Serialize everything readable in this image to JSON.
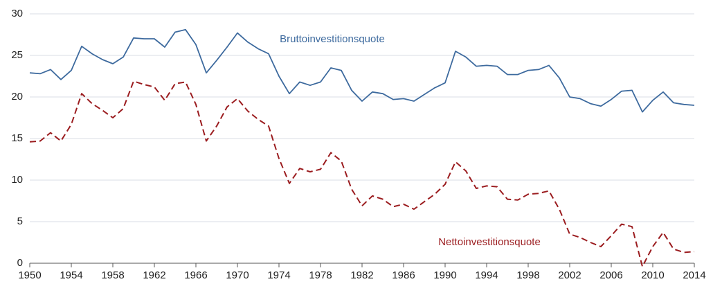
{
  "chart_data": {
    "type": "line",
    "x": [
      1950,
      1951,
      1952,
      1953,
      1954,
      1955,
      1956,
      1957,
      1958,
      1959,
      1960,
      1961,
      1962,
      1963,
      1964,
      1965,
      1966,
      1967,
      1968,
      1969,
      1970,
      1971,
      1972,
      1973,
      1974,
      1975,
      1976,
      1977,
      1978,
      1979,
      1980,
      1981,
      1982,
      1983,
      1984,
      1985,
      1986,
      1987,
      1988,
      1989,
      1990,
      1991,
      1992,
      1993,
      1994,
      1995,
      1996,
      1997,
      1998,
      1999,
      2000,
      2001,
      2002,
      2003,
      2004,
      2005,
      2006,
      2007,
      2008,
      2009,
      2010,
      2011,
      2012,
      2013,
      2014
    ],
    "series": [
      {
        "name": "Bruttoinvestitionsquote",
        "color": "#3d6a9e",
        "style": "solid",
        "values": [
          22.9,
          22.8,
          23.3,
          22.1,
          23.2,
          26.1,
          25.2,
          24.5,
          24.0,
          24.8,
          27.1,
          27.0,
          27.0,
          26.0,
          27.8,
          28.1,
          26.3,
          22.9,
          24.4,
          26.0,
          27.7,
          26.6,
          25.8,
          25.2,
          22.5,
          20.4,
          21.8,
          21.4,
          21.8,
          23.5,
          23.2,
          20.8,
          19.5,
          20.6,
          20.4,
          19.7,
          19.8,
          19.5,
          20.3,
          21.1,
          21.7,
          25.5,
          24.8,
          23.7,
          23.8,
          23.7,
          22.7,
          22.7,
          23.2,
          23.3,
          23.8,
          22.3,
          20.0,
          19.8,
          19.2,
          18.9,
          19.7,
          20.7,
          20.8,
          18.2,
          19.6,
          20.6,
          19.3,
          19.1,
          19.0
        ]
      },
      {
        "name": "Nettoinvestitionsquote",
        "color": "#9b1c1f",
        "style": "dashed",
        "values": [
          14.6,
          14.7,
          15.7,
          14.7,
          16.7,
          20.4,
          19.2,
          18.4,
          17.5,
          18.6,
          21.9,
          21.5,
          21.2,
          19.6,
          21.6,
          21.8,
          19.1,
          14.7,
          16.5,
          18.8,
          19.8,
          18.3,
          17.3,
          16.5,
          12.6,
          9.6,
          11.4,
          11.0,
          11.3,
          13.3,
          12.3,
          8.9,
          6.9,
          8.1,
          7.7,
          6.8,
          7.1,
          6.5,
          7.4,
          8.3,
          9.5,
          12.2,
          11.1,
          9.0,
          9.3,
          9.2,
          7.7,
          7.6,
          8.3,
          8.4,
          8.7,
          6.5,
          3.5,
          3.1,
          2.5,
          2.0,
          3.3,
          4.7,
          4.4,
          -0.4,
          2.0,
          3.7,
          1.7,
          1.3,
          1.4
        ]
      }
    ],
    "xlim": [
      1950,
      2014
    ],
    "xticks": [
      1950,
      1954,
      1958,
      1962,
      1966,
      1970,
      1974,
      1978,
      1982,
      1986,
      1990,
      1994,
      1998,
      2002,
      2006,
      2010,
      2014
    ],
    "ylim": [
      0,
      30
    ],
    "yticks": [
      0,
      5,
      10,
      15,
      20,
      25,
      30
    ],
    "grid": true
  }
}
